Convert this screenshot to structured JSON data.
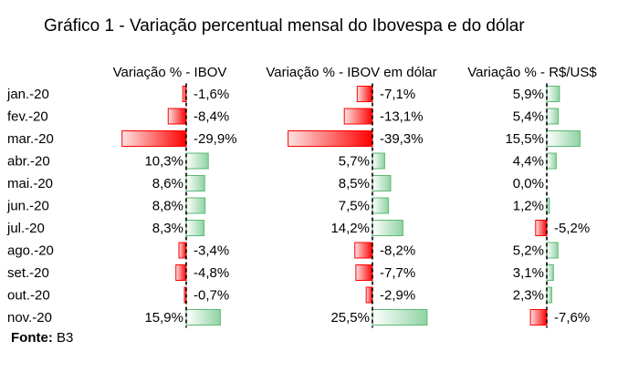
{
  "title": "Gráfico 1 - Variação percentual mensal do Ibovespa e do dólar",
  "source": {
    "label": "Fonte:",
    "value": "B3"
  },
  "colors": {
    "negative_light": "#fbe3e3",
    "negative_dark": "#ff0000",
    "positive_light": "#ffffff",
    "positive_dark": "#8fd3a3",
    "positive_border": "#5cb873",
    "axis": "#000000"
  },
  "chart_data": {
    "type": "bar",
    "orientation": "horizontal",
    "categories": [
      "jan.-20",
      "fev.-20",
      "mar.-20",
      "abr.-20",
      "mai.-20",
      "jun.-20",
      "jul.-20",
      "ago.-20",
      "set.-20",
      "out.-20",
      "nov.-20"
    ],
    "series": [
      {
        "name": "Variação % - IBOV",
        "values": [
          -1.6,
          -8.4,
          -29.9,
          10.3,
          8.6,
          8.8,
          8.3,
          -3.4,
          -4.8,
          -0.7,
          15.9
        ],
        "labels": [
          "-1,6%",
          "-8,4%",
          "-29,9%",
          "10,3%",
          "8,6%",
          "8,8%",
          "8,3%",
          "-3,4%",
          "-4,8%",
          "-0,7%",
          "15,9%"
        ]
      },
      {
        "name": "Variação % - IBOV em dólar",
        "values": [
          -7.1,
          -13.1,
          -39.3,
          5.7,
          8.5,
          7.5,
          14.2,
          -8.2,
          -7.7,
          -2.9,
          25.5
        ],
        "labels": [
          "-7,1%",
          "-13,1%",
          "-39,3%",
          "5,7%",
          "8,5%",
          "7,5%",
          "14,2%",
          "-8,2%",
          "-7,7%",
          "-2,9%",
          "25,5%"
        ]
      },
      {
        "name": "Variação % - R$/US$",
        "values": [
          5.9,
          5.4,
          15.5,
          4.4,
          0.0,
          1.2,
          -5.2,
          5.2,
          3.1,
          2.3,
          -7.6
        ],
        "labels": [
          "5,9%",
          "5,4%",
          "15,5%",
          "4,4%",
          "0,0%",
          "1,2%",
          "-5,2%",
          "5,2%",
          "3,1%",
          "2,3%",
          "-7,6%"
        ]
      }
    ]
  }
}
